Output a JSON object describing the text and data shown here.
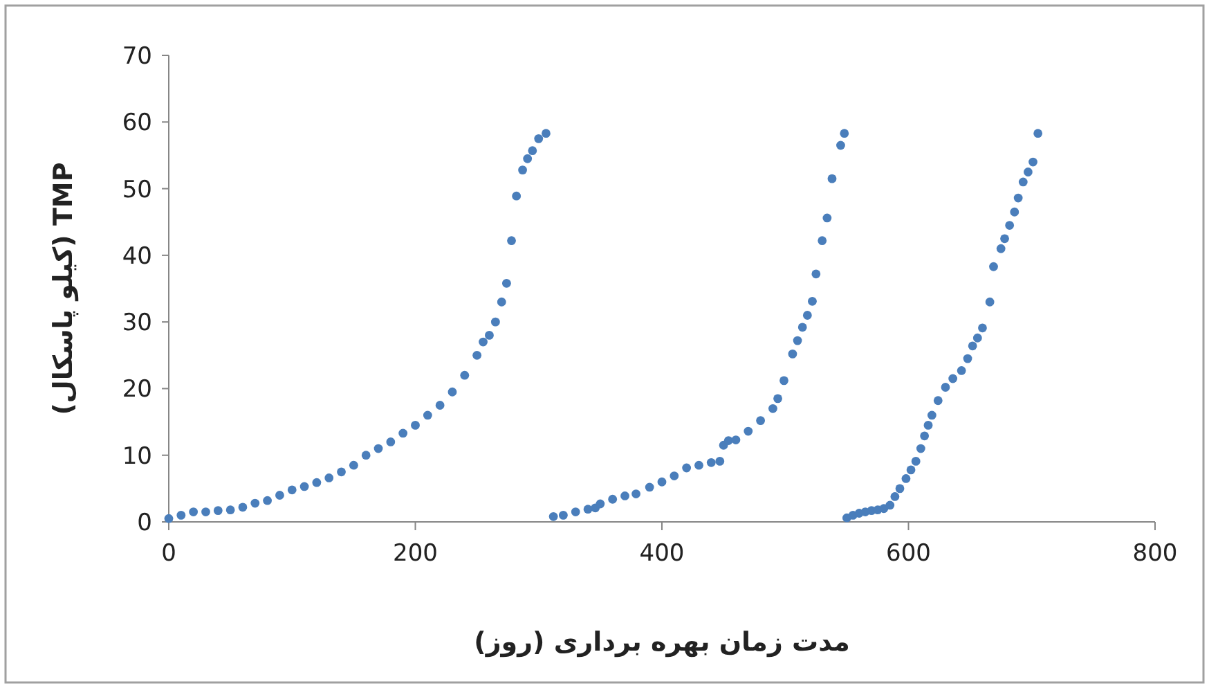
{
  "chart_data": {
    "type": "scatter",
    "xlabel": "مدت زمان بهره برداری (روز)",
    "ylabel": "TMP (کیلو پاسکال)",
    "xlim": [
      0,
      800
    ],
    "xticks": [
      0,
      200,
      400,
      600,
      800
    ],
    "ylim": [
      0,
      70
    ],
    "yticks": [
      0,
      10,
      20,
      30,
      40,
      50,
      60,
      70
    ],
    "marker": "circle",
    "grid": false,
    "series": [
      {
        "color": "#4a7ebb",
        "x": [
          0,
          10,
          20,
          30,
          40,
          50,
          60,
          70,
          80,
          90,
          100,
          110,
          120,
          130,
          140,
          150,
          160,
          170,
          180,
          190,
          200,
          210,
          220,
          230,
          240,
          250,
          255,
          260,
          265,
          270,
          274,
          278,
          282,
          287,
          291,
          295,
          300,
          306
        ],
        "values": [
          0.5,
          1,
          1.5,
          1.5,
          1.7,
          1.8,
          2.2,
          2.8,
          3.2,
          4,
          4.8,
          5.3,
          5.9,
          6.6,
          7.5,
          8.5,
          10,
          11,
          12,
          13.3,
          14.5,
          16,
          17.5,
          19.5,
          22,
          25,
          27,
          28,
          30,
          33,
          35.8,
          42.2,
          48.9,
          52.8,
          54.5,
          55.7,
          57.5,
          58.3
        ]
      },
      {
        "color": "#4a7ebb",
        "x": [
          312,
          320,
          330,
          340,
          346,
          350,
          360,
          370,
          379,
          390,
          400,
          410,
          420,
          430,
          440,
          447,
          450,
          454,
          460,
          470,
          480,
          490,
          494,
          499,
          506,
          510,
          514,
          518,
          522,
          525,
          530,
          534,
          538,
          545,
          548
        ],
        "values": [
          0.8,
          1,
          1.5,
          1.9,
          2.1,
          2.7,
          3.4,
          3.9,
          4.2,
          5.2,
          6,
          6.9,
          8.1,
          8.5,
          8.9,
          9.1,
          11.5,
          12.2,
          12.3,
          13.6,
          15.2,
          17,
          18.5,
          21.2,
          25.2,
          27.2,
          29.2,
          31,
          33.1,
          37.2,
          42.2,
          45.6,
          51.5,
          56.5,
          58.3
        ]
      },
      {
        "color": "#4a7ebb",
        "x": [
          550,
          555,
          560,
          565,
          570,
          575,
          580,
          585,
          589,
          593,
          598,
          602,
          606,
          610,
          613,
          616,
          619,
          624,
          630,
          636,
          643,
          648,
          652,
          656,
          660,
          666,
          669,
          675,
          678,
          682,
          686,
          689,
          693,
          697,
          701,
          705
        ],
        "values": [
          0.6,
          1,
          1.3,
          1.5,
          1.7,
          1.8,
          2,
          2.5,
          3.8,
          5,
          6.5,
          7.8,
          9.1,
          11,
          12.9,
          14.5,
          16,
          18.2,
          20.2,
          21.5,
          22.7,
          24.5,
          26.4,
          27.6,
          29.1,
          33,
          38.3,
          41,
          42.5,
          44.5,
          46.5,
          48.6,
          51,
          52.5,
          54,
          58.3
        ]
      }
    ]
  }
}
